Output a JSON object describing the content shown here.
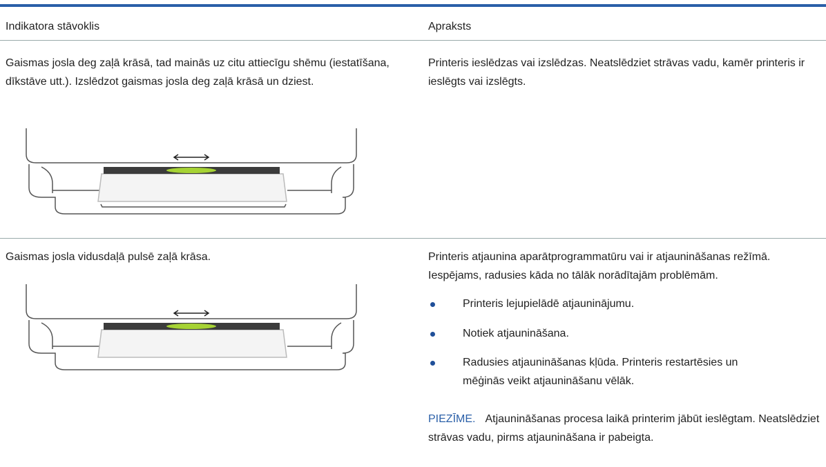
{
  "table": {
    "header": [
      "Indikatora stāvoklis",
      "Apraksts"
    ],
    "rows": [
      {
        "state": "Gaismas josla deg zaļā krāsā, tad mainās uz citu attiecīgu shēmu (iestatīšana, dīkstāve utt.). Izslēdzot gaismas josla deg zaļā krāsā un dziest.",
        "description": "Printeris ieslēdzas vai izslēdzas. Neatslēdziet strāvas vadu, kamēr printeris ir ieslēgts vai izslēgts."
      },
      {
        "state": "Gaismas josla vidusdaļā pulsē zaļā krāsa.",
        "description": "Printeris atjaunina aparātprogrammatūru vai ir atjaunināšanas režīmā. Iespējams, radusies kāda no tālāk norādītajām problēmām.",
        "bullets": [
          "Printeris lejupielādē atjauninājumu.",
          "Notiek atjaunināšana.",
          "Radusies atjaunināšanas kļūda. Printeris restartēsies un mēģinās veikt atjaunināšanu vēlāk."
        ],
        "note_label": "PIEZĪME.",
        "note": "Atjaunināšanas procesa laikā printerim jābūt ieslēgtam. Neatslēdziet strāvas vadu, pirms atjaunināšana ir pabeigta."
      }
    ]
  }
}
